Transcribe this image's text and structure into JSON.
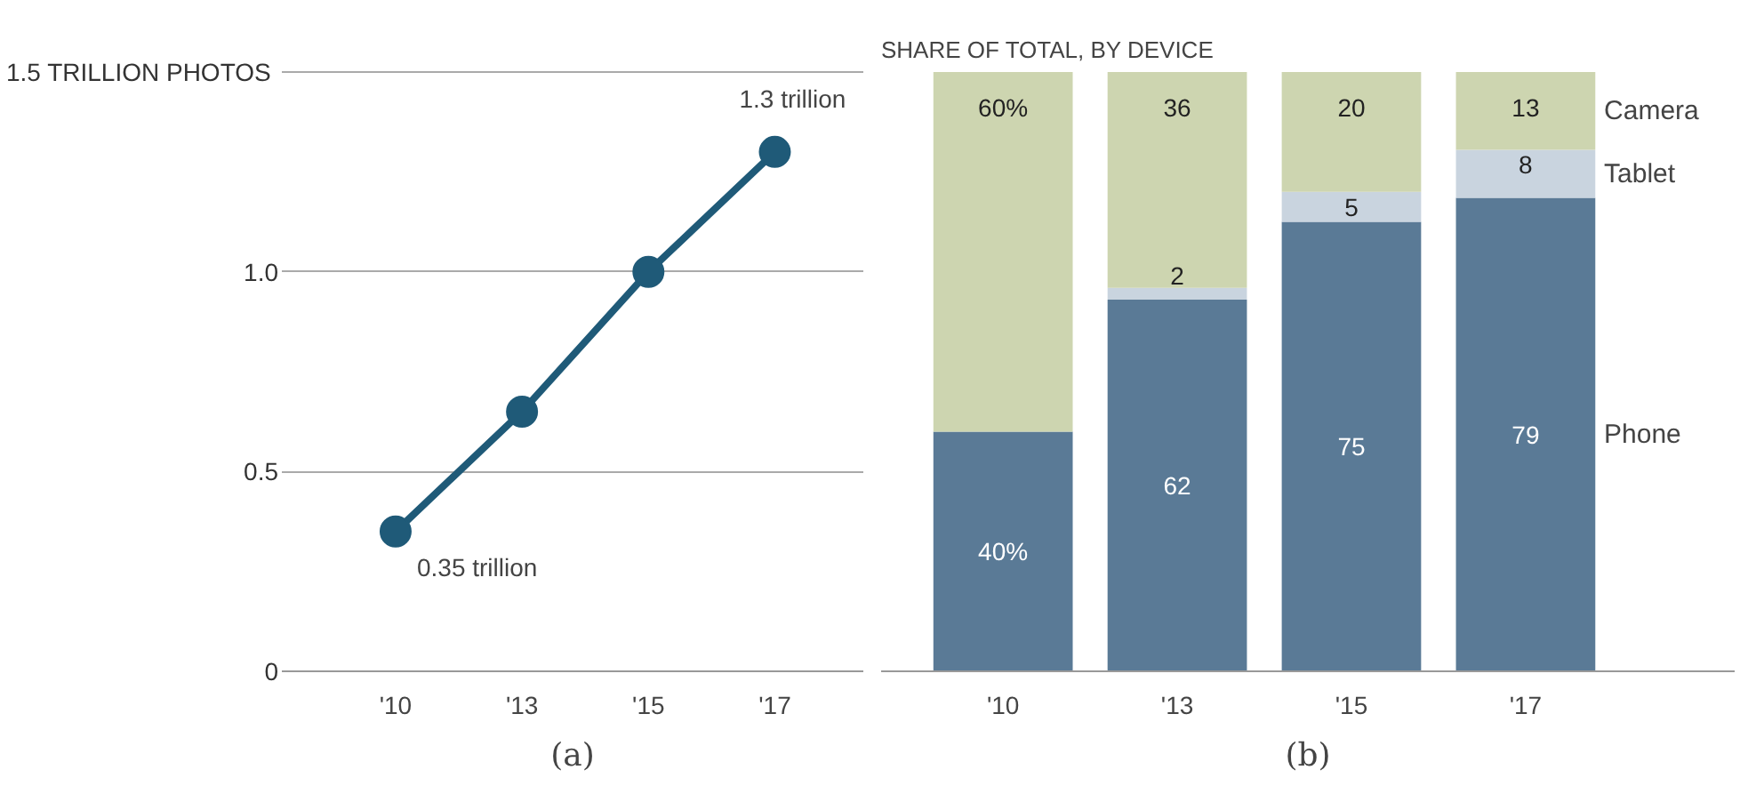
{
  "chart_data": [
    {
      "type": "line",
      "categories": [
        "'10",
        "'13",
        "'15",
        "'17"
      ],
      "series": [
        {
          "color": "#1f5a78",
          "values": [
            0.35,
            0.65,
            1.0,
            1.3
          ]
        }
      ],
      "ylim": [
        0,
        1.5
      ],
      "yticks": [
        0,
        0.5,
        {
          "value": 1.0,
          "label": "1.0"
        },
        {
          "value": 1.5,
          "label": "1.5  TRILLION PHOTOS"
        }
      ],
      "grid": "y",
      "marker": "circle",
      "annotations": [
        {
          "text": "1.3 trillion",
          "x": "'17",
          "y": 1.3
        },
        {
          "text": "0.35 trillion",
          "x": "'10",
          "y": 0.35
        },
        "(a)"
      ]
    },
    {
      "type": "bar",
      "stacked": true,
      "title": "SHARE OF TOTAL, BY DEVICE",
      "categories": [
        "'10",
        "'13",
        "'15",
        "'17"
      ],
      "series": [
        {
          "name": "Phone",
          "color": "#5a7a96",
          "values": [
            40,
            62,
            75,
            79
          ],
          "value_labels": [
            "40%",
            "62",
            "75",
            "79"
          ]
        },
        {
          "name": "Tablet",
          "color": "#c9d4df",
          "values": [
            null,
            2,
            5,
            8
          ],
          "value_labels": [
            null,
            "2",
            "5",
            "8"
          ]
        },
        {
          "name": "Camera",
          "color": "#cdd5b0",
          "values": [
            60,
            36,
            20,
            13
          ],
          "value_labels": [
            "60%",
            "36",
            "20",
            "13"
          ]
        }
      ],
      "tick_labels": "x",
      "legend": "right",
      "grid": false,
      "annotations": [
        "(b)"
      ]
    }
  ]
}
